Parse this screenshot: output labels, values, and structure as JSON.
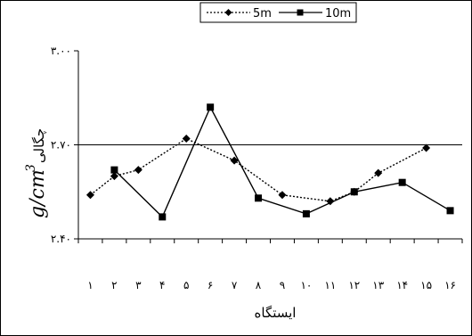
{
  "chart_data": {
    "type": "line",
    "title": "",
    "xlabel": "ایستگاه",
    "ylabel": "چگالی",
    "ylabel_unit": "g/cm3",
    "ylim": [
      2.4,
      3.0
    ],
    "yticks": [
      2.4,
      2.7,
      3.0
    ],
    "ytick_labels": [
      "۲.۴۰",
      "۲.۷۰",
      "۳.۰۰"
    ],
    "grid": "horizontal at 2.70",
    "legend_position": "top",
    "x": [
      1,
      2,
      3,
      4,
      5,
      6,
      7,
      8,
      9,
      10,
      11,
      12,
      13,
      14,
      15,
      16
    ],
    "xtick_labels": [
      "۱",
      "۲",
      "۳",
      "۴",
      "۵",
      "۶",
      "۷",
      "۸",
      "۹",
      "۱۰",
      "۱۱",
      "۱۲",
      "۱۳",
      "۱۴",
      "۱۵",
      "۱۶"
    ],
    "series": [
      {
        "name": "5m",
        "marker": "diamond",
        "line": "dotted",
        "values": [
          2.54,
          2.6,
          2.62,
          null,
          2.72,
          null,
          2.65,
          null,
          2.54,
          null,
          2.52,
          2.55,
          2.61,
          null,
          2.69,
          null
        ]
      },
      {
        "name": "10m",
        "marker": "square",
        "line": "solid",
        "values": [
          null,
          2.62,
          null,
          2.47,
          null,
          2.82,
          null,
          2.53,
          null,
          2.48,
          null,
          2.55,
          null,
          2.58,
          null,
          2.49
        ]
      }
    ]
  }
}
